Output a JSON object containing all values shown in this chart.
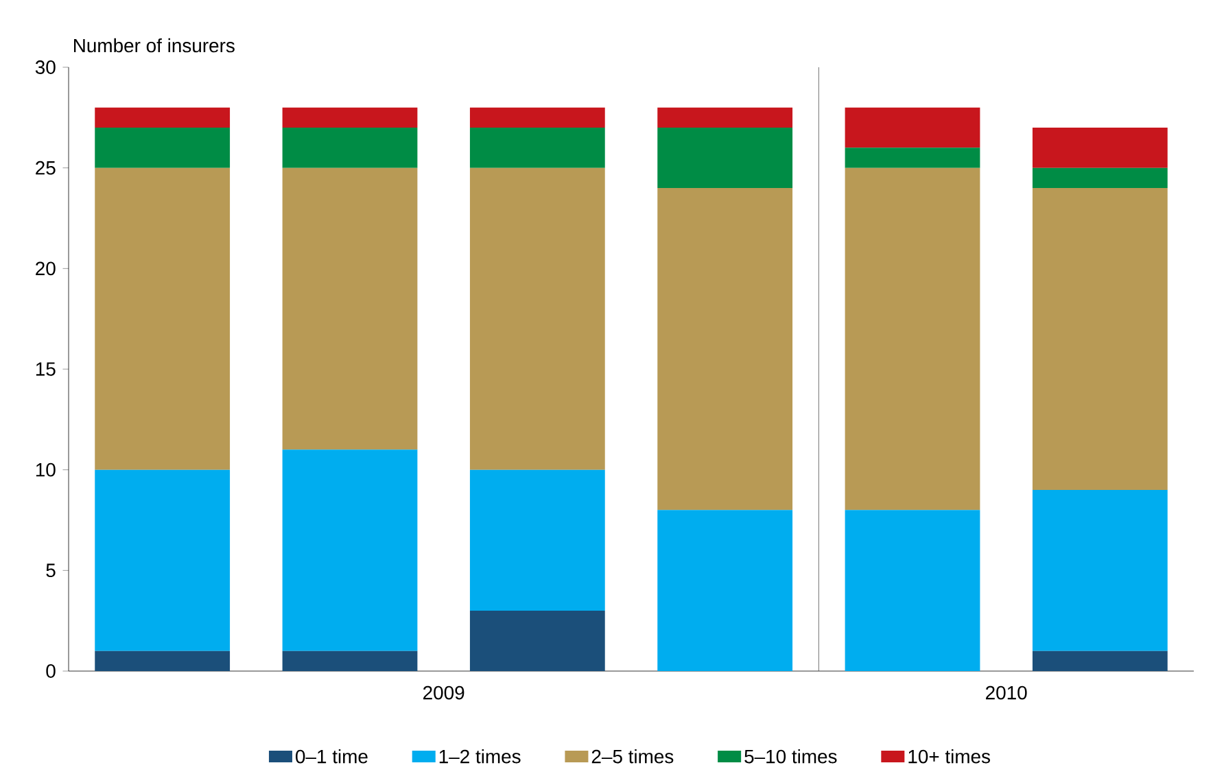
{
  "chart_data": {
    "type": "bar",
    "stacked": true,
    "ylabel": "Number of insurers",
    "categories": [
      null,
      null,
      null,
      null,
      null,
      null
    ],
    "series": [
      {
        "name": "0–1 time",
        "color": "#1b4f7a",
        "values": [
          1,
          1,
          3,
          0,
          0,
          1
        ]
      },
      {
        "name": "1–2 times",
        "color": "#00adef",
        "values": [
          9,
          10,
          7,
          8,
          8,
          8
        ]
      },
      {
        "name": "2–5 times",
        "color": "#b89a55",
        "values": [
          15,
          14,
          15,
          16,
          17,
          15
        ]
      },
      {
        "name": "5–10 times",
        "color": "#008c45",
        "values": [
          2,
          2,
          2,
          3,
          1,
          1
        ]
      },
      {
        "name": "10+ times",
        "color": "#c8161d",
        "values": [
          1,
          1,
          1,
          1,
          2,
          2
        ]
      }
    ],
    "annotations": [
      "2009",
      "2010"
    ],
    "ylim": [
      0,
      30
    ],
    "yticks": [
      0,
      5,
      10,
      15,
      20,
      25,
      30
    ],
    "grid": false,
    "legend": "bottom"
  }
}
